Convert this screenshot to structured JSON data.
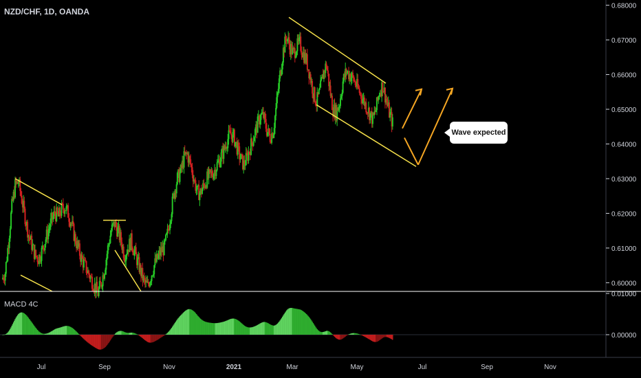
{
  "header": {
    "symbol": "NZD/CHF, 1D, OANDA"
  },
  "indicator": {
    "label": "MACD 4C"
  },
  "callout": {
    "text": "Wave expected"
  },
  "colors": {
    "up": "#26c826",
    "down": "#d02020",
    "pattern": "#f5e04a",
    "arrow": "#f5a623",
    "macd_pos": "#2fae2f",
    "macd_pos_light": "#5fd35f",
    "macd_neg": "#c21d1d",
    "macd_neg_light": "#8a1414"
  },
  "chart_data": {
    "type": "candlestick",
    "price_axis": {
      "ylim": [
        0.5975,
        0.6815
      ],
      "ticks": [
        "0.68000",
        "0.67000",
        "0.66000",
        "0.65000",
        "0.64000",
        "0.63000",
        "0.62000",
        "0.61000",
        "0.60000"
      ]
    },
    "macd_axis": {
      "ylim": [
        -0.0055,
        0.0105
      ],
      "ticks": [
        "0.01000",
        "0.00000"
      ]
    },
    "x_axis": {
      "ticks": [
        "Jul",
        "Sep",
        "Nov",
        "2021",
        "Mar",
        "May",
        "Jul",
        "Sep",
        "Nov"
      ]
    },
    "closes": [
      0.601,
      0.603,
      0.612,
      0.622,
      0.628,
      0.629,
      0.624,
      0.619,
      0.614,
      0.611,
      0.608,
      0.607,
      0.609,
      0.612,
      0.615,
      0.618,
      0.62,
      0.619,
      0.621,
      0.622,
      0.62,
      0.617,
      0.613,
      0.61,
      0.607,
      0.605,
      0.603,
      0.601,
      0.599,
      0.597,
      0.6,
      0.604,
      0.61,
      0.615,
      0.617,
      0.615,
      0.612,
      0.608,
      0.61,
      0.612,
      0.609,
      0.606,
      0.603,
      0.6,
      0.599,
      0.602,
      0.605,
      0.607,
      0.609,
      0.61,
      0.614,
      0.62,
      0.626,
      0.63,
      0.632,
      0.636,
      0.637,
      0.634,
      0.63,
      0.626,
      0.626,
      0.628,
      0.63,
      0.631,
      0.632,
      0.634,
      0.636,
      0.638,
      0.641,
      0.643,
      0.642,
      0.639,
      0.636,
      0.634,
      0.636,
      0.639,
      0.642,
      0.645,
      0.648,
      0.648,
      0.644,
      0.642,
      0.644,
      0.652,
      0.66,
      0.667,
      0.671,
      0.668,
      0.666,
      0.668,
      0.669,
      0.666,
      0.664,
      0.66,
      0.655,
      0.652,
      0.655,
      0.66,
      0.663,
      0.656,
      0.65,
      0.649,
      0.652,
      0.658,
      0.661,
      0.66,
      0.659,
      0.657,
      0.655,
      0.653,
      0.651,
      0.649,
      0.647,
      0.65,
      0.655,
      0.657,
      0.653,
      0.649,
      0.646
    ],
    "patterns": [
      {
        "from": [
          0.63,
          0.6225
        ],
        "to": [
          0.6022,
          0.5975
        ]
      },
      {
        "flag_top": 0.618,
        "to": [
          0.6094,
          0.5975
        ]
      },
      {
        "from": [
          0.6765,
          0.6575
        ],
        "to": [
          0.6513,
          0.6335
        ]
      }
    ],
    "arrows": [
      {
        "from": 0.6445,
        "to": 0.6558
      },
      {
        "from": 0.6418,
        "via": 0.634,
        "to": 0.656
      }
    ],
    "annotation": "Wave expected"
  }
}
